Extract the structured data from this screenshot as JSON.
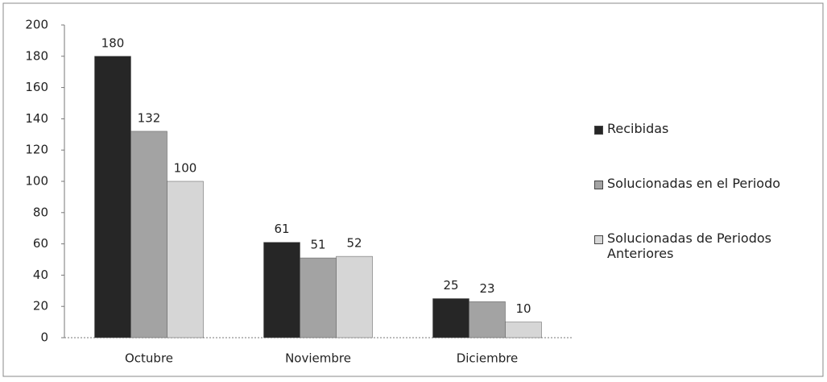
{
  "chart_data": {
    "type": "bar",
    "categories": [
      "Octubre",
      "Noviembre",
      "Diciembre"
    ],
    "series": [
      {
        "name": "Recibidas",
        "color": "#262626",
        "values": [
          180,
          61,
          25
        ]
      },
      {
        "name": "Solucionadas en el Periodo",
        "color": "#a3a3a3",
        "values": [
          132,
          51,
          23
        ]
      },
      {
        "name": "Solucionadas de Periodos Anteriores",
        "color": "#d6d6d6",
        "values": [
          100,
          52,
          10
        ]
      }
    ],
    "ylim": [
      0,
      200
    ],
    "yticks": [
      0,
      20,
      40,
      60,
      80,
      100,
      120,
      140,
      160,
      180,
      200
    ],
    "grid": false,
    "legend": "right"
  }
}
